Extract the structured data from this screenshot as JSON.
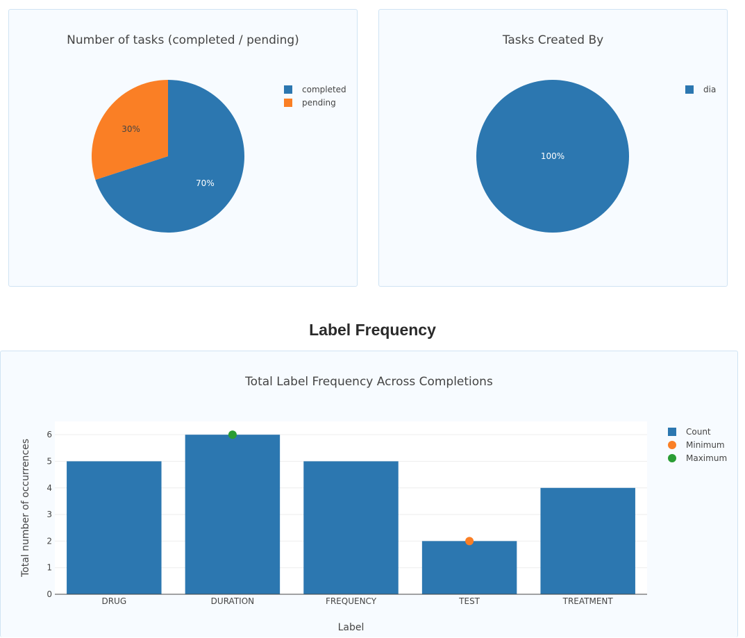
{
  "chart_data": [
    {
      "type": "pie",
      "title": "Number of tasks (completed / pending)",
      "labels": [
        "completed",
        "pending"
      ],
      "values": [
        70,
        30
      ],
      "text_labels": [
        "70%",
        "30%"
      ],
      "colors": [
        "#2c77b0",
        "#fa7f25"
      ],
      "legend": "top-right"
    },
    {
      "type": "pie",
      "title": "Tasks Created By",
      "labels": [
        "dia"
      ],
      "values": [
        100
      ],
      "text_labels": [
        "100%"
      ],
      "colors": [
        "#2c77b0"
      ],
      "legend": "top-right"
    },
    {
      "type": "bar",
      "title": "Total Label Frequency Across Completions",
      "categories": [
        "DRUG",
        "DURATION",
        "FREQUENCY",
        "TEST",
        "TREATMENT"
      ],
      "series": [
        {
          "name": "Count",
          "values": [
            5,
            6,
            5,
            2,
            4
          ],
          "color": "#2c77b0"
        }
      ],
      "markers": [
        {
          "name": "Minimum",
          "category": "TEST",
          "value": 2,
          "color": "#fa7f25"
        },
        {
          "name": "Maximum",
          "category": "DURATION",
          "value": 6,
          "color": "#2a9d34"
        }
      ],
      "xlabel": "Label",
      "ylabel": "Total number of occurrences",
      "ylim": [
        0,
        6.5
      ],
      "yticks": [
        0,
        1,
        2,
        3,
        4,
        5,
        6
      ],
      "grid": true,
      "legend": "top-right"
    }
  ],
  "section": {
    "heading": "Label Frequency"
  }
}
